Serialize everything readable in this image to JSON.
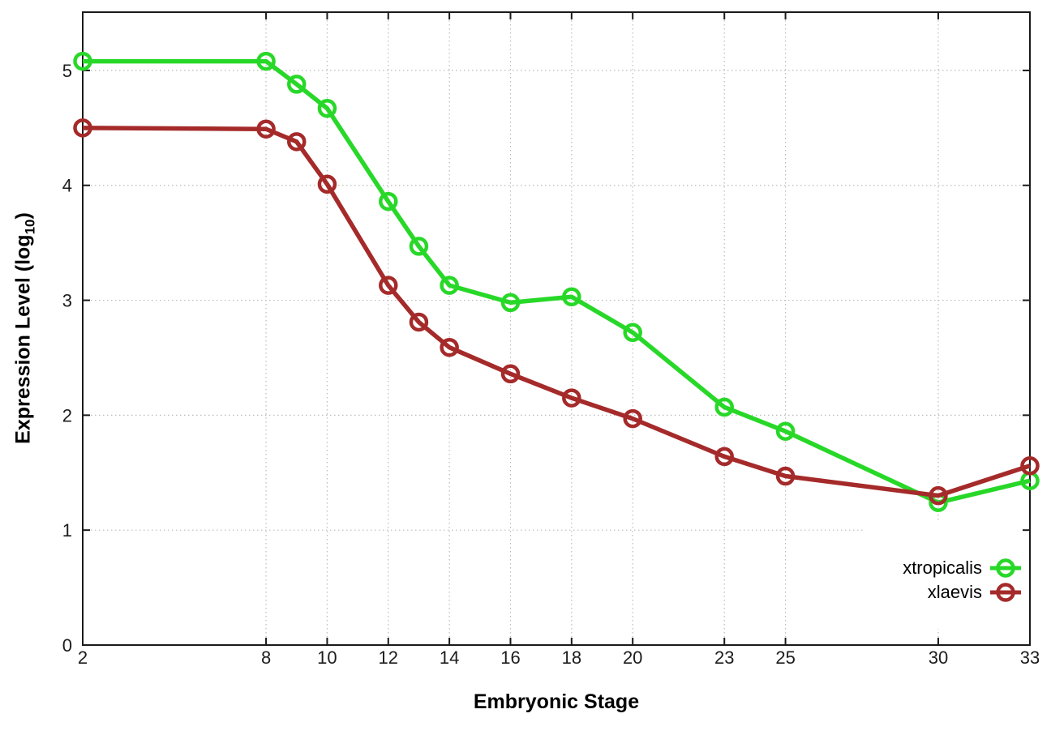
{
  "figure": {
    "background": "#ffffff",
    "xlabel": "Embryonic Stage",
    "ylabel": {
      "prefix": "Expression Level (log",
      "sub": "10",
      "suffix": ")"
    }
  },
  "chart_data": {
    "type": "line",
    "title": "",
    "xlabel": "Embryonic Stage",
    "ylabel": "Expression Level (log10)",
    "x": [
      2,
      8,
      9,
      10,
      12,
      13,
      14,
      16,
      18,
      20,
      23,
      25,
      30,
      33
    ],
    "series": [
      {
        "name": "xtropicalis",
        "color": "#28d828",
        "values": [
          5.08,
          5.08,
          4.88,
          4.67,
          3.86,
          3.47,
          3.13,
          2.98,
          3.03,
          2.72,
          2.07,
          1.86,
          1.24,
          1.43
        ]
      },
      {
        "name": "xlaevis",
        "color": "#a52a2a",
        "values": [
          4.5,
          4.49,
          4.38,
          4.01,
          3.13,
          2.81,
          2.59,
          2.36,
          2.15,
          1.97,
          1.64,
          1.47,
          1.3,
          1.56
        ]
      }
    ],
    "x_ticks": [
      2,
      8,
      10,
      12,
      14,
      16,
      18,
      20,
      23,
      25,
      30,
      33
    ],
    "y_ticks": [
      0,
      1,
      2,
      3,
      4,
      5
    ],
    "xlim": [
      2,
      33
    ],
    "ylim": [
      0,
      5.5
    ],
    "grid": true,
    "legend_position": "inside-right-bottom",
    "axis_color": "#1a1a1a",
    "tick_label_color": "#1c1c1c",
    "grid_color": "#bbbbbb"
  }
}
